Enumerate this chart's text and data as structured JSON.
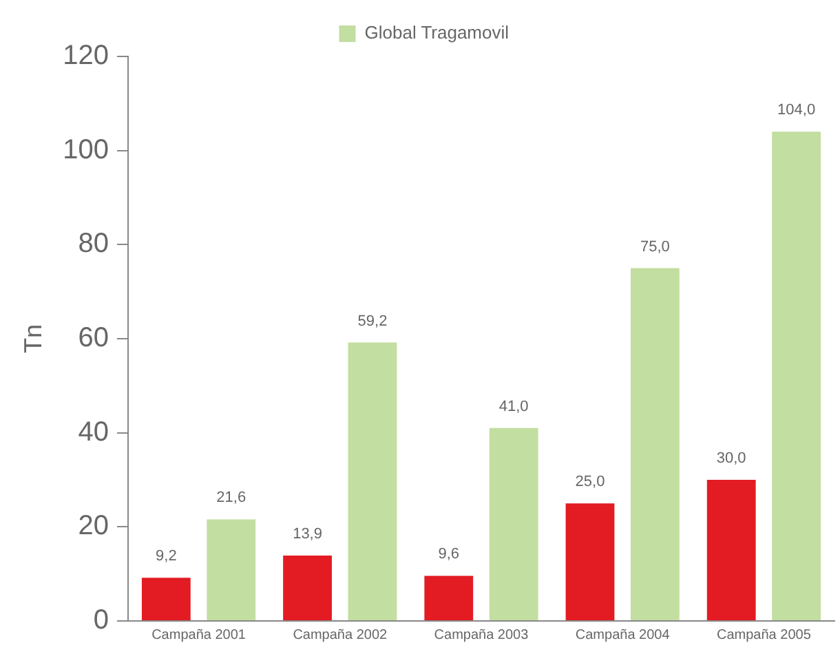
{
  "chart_data": {
    "type": "bar",
    "ylabel": "Tn",
    "categories": [
      "Campaña 2001",
      "Campaña 2002",
      "Campaña 2003",
      "Campaña 2004",
      "Campaña 2005"
    ],
    "series": [
      {
        "color": "#e31b23",
        "values": [
          9.2,
          13.9,
          9.6,
          25.0,
          30.0
        ],
        "value_labels": [
          "9,2",
          "13,9",
          "9,6",
          "25,0",
          "30,0"
        ]
      },
      {
        "name": "Global Tragamovil",
        "color": "#c2dea0",
        "values": [
          21.6,
          59.2,
          41.0,
          75.0,
          104.0
        ],
        "value_labels": [
          "21,6",
          "59,2",
          "41,0",
          "75,0",
          "104,0"
        ]
      }
    ],
    "ylim": [
      0,
      120
    ],
    "yticks": [
      0,
      20,
      40,
      60,
      80,
      100,
      120
    ],
    "grid": false,
    "legend": "top"
  }
}
